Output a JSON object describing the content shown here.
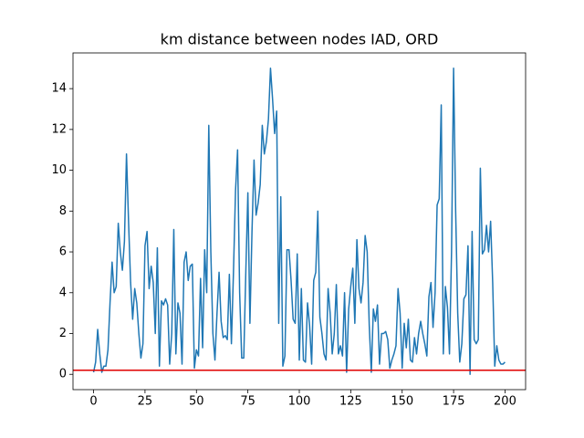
{
  "chart_data": {
    "type": "line",
    "title": "km distance between nodes IAD, ORD",
    "x": [
      0,
      1,
      2,
      3,
      4,
      5,
      6,
      7,
      8,
      9,
      10,
      11,
      12,
      13,
      14,
      15,
      16,
      17,
      18,
      19,
      20,
      21,
      22,
      23,
      24,
      25,
      26,
      27,
      28,
      29,
      30,
      31,
      32,
      33,
      34,
      35,
      36,
      37,
      38,
      39,
      40,
      41,
      42,
      43,
      44,
      45,
      46,
      47,
      48,
      49,
      50,
      51,
      52,
      53,
      54,
      55,
      56,
      57,
      58,
      59,
      60,
      61,
      62,
      63,
      64,
      65,
      66,
      67,
      68,
      69,
      70,
      71,
      72,
      73,
      74,
      75,
      76,
      77,
      78,
      79,
      80,
      81,
      82,
      83,
      84,
      85,
      86,
      87,
      88,
      89,
      90,
      91,
      92,
      93,
      94,
      95,
      96,
      97,
      98,
      99,
      100,
      101,
      102,
      103,
      104,
      105,
      106,
      107,
      108,
      109,
      110,
      111,
      112,
      113,
      114,
      115,
      116,
      117,
      118,
      119,
      120,
      121,
      122,
      123,
      124,
      125,
      126,
      127,
      128,
      129,
      130,
      131,
      132,
      133,
      134,
      135,
      136,
      137,
      138,
      139,
      140,
      141,
      142,
      143,
      144,
      145,
      146,
      147,
      148,
      149,
      150,
      151,
      152,
      153,
      154,
      155,
      156,
      157,
      158,
      159,
      160,
      161,
      162,
      163,
      164,
      165,
      166,
      167,
      168,
      169,
      170,
      171,
      172,
      173,
      174,
      175,
      176,
      177,
      178,
      179,
      180,
      181,
      182,
      183,
      184,
      185,
      186,
      187,
      188,
      189,
      190,
      191,
      192,
      193,
      194,
      195,
      196,
      197,
      198,
      199,
      200
    ],
    "series": [
      {
        "color": "#1f77b4",
        "values": [
          0.1,
          0.6,
          2.2,
          1.0,
          0.1,
          0.4,
          0.4,
          1.2,
          3.5,
          5.5,
          4.0,
          4.3,
          7.4,
          6.0,
          5.1,
          6.5,
          10.8,
          7.5,
          4.5,
          2.7,
          4.2,
          3.5,
          2.0,
          0.8,
          1.5,
          6.3,
          7.0,
          4.2,
          5.3,
          4.5,
          2.0,
          6.2,
          0.4,
          3.6,
          3.4,
          3.7,
          3.4,
          0.5,
          2.0,
          7.1,
          1.0,
          3.5,
          3.0,
          0.5,
          5.5,
          6.0,
          4.6,
          5.3,
          5.4,
          0.3,
          1.2,
          0.9,
          4.7,
          1.3,
          6.1,
          4.0,
          12.2,
          6.0,
          2.0,
          0.7,
          3.0,
          5.0,
          2.6,
          1.8,
          1.9,
          1.7,
          4.9,
          1.5,
          5.0,
          9.0,
          11.0,
          4.0,
          0.8,
          0.8,
          5.0,
          8.9,
          2.5,
          7.0,
          10.5,
          7.8,
          8.4,
          9.3,
          12.2,
          10.8,
          11.4,
          12.5,
          15.0,
          13.5,
          11.8,
          12.9,
          2.5,
          8.7,
          0.4,
          0.9,
          6.1,
          6.1,
          4.6,
          2.7,
          2.5,
          5.9,
          0.7,
          4.2,
          0.7,
          0.6,
          3.5,
          2.4,
          0.5,
          4.6,
          5.0,
          8.0,
          2.8,
          2.0,
          1.0,
          0.7,
          4.2,
          3.0,
          1.0,
          2.0,
          4.4,
          1.0,
          1.4,
          0.9,
          4.0,
          0.1,
          3.2,
          4.3,
          5.2,
          2.5,
          6.6,
          4.2,
          3.5,
          4.5,
          6.8,
          6.0,
          2.4,
          0.1,
          3.2,
          2.6,
          3.4,
          0.5,
          2.0,
          2.0,
          2.1,
          1.7,
          0.3,
          0.7,
          1.0,
          1.4,
          4.2,
          3.0,
          0.3,
          2.5,
          1.3,
          2.7,
          0.7,
          0.6,
          1.8,
          1.0,
          2.0,
          2.6,
          2.0,
          1.5,
          0.9,
          3.8,
          4.5,
          2.3,
          4.0,
          8.3,
          8.6,
          13.2,
          1.0,
          4.3,
          3.3,
          1.0,
          6.0,
          15.0,
          8.0,
          3.0,
          0.6,
          1.5,
          3.7,
          3.9,
          6.3,
          0.0,
          7.0,
          1.7,
          1.5,
          1.7,
          10.1,
          5.9,
          6.1,
          7.3,
          6.0,
          7.5,
          4.5,
          0.4,
          1.4,
          0.7,
          0.5,
          0.5,
          0.6
        ]
      }
    ],
    "hline": {
      "y": 0.2,
      "color": "#e00000"
    },
    "xlim": [
      -10,
      210
    ],
    "xticks": [
      0,
      25,
      50,
      75,
      100,
      125,
      150,
      175,
      200
    ],
    "ylim": [
      -0.75,
      15.75
    ],
    "yticks": [
      0,
      2,
      4,
      6,
      8,
      10,
      12,
      14
    ]
  }
}
